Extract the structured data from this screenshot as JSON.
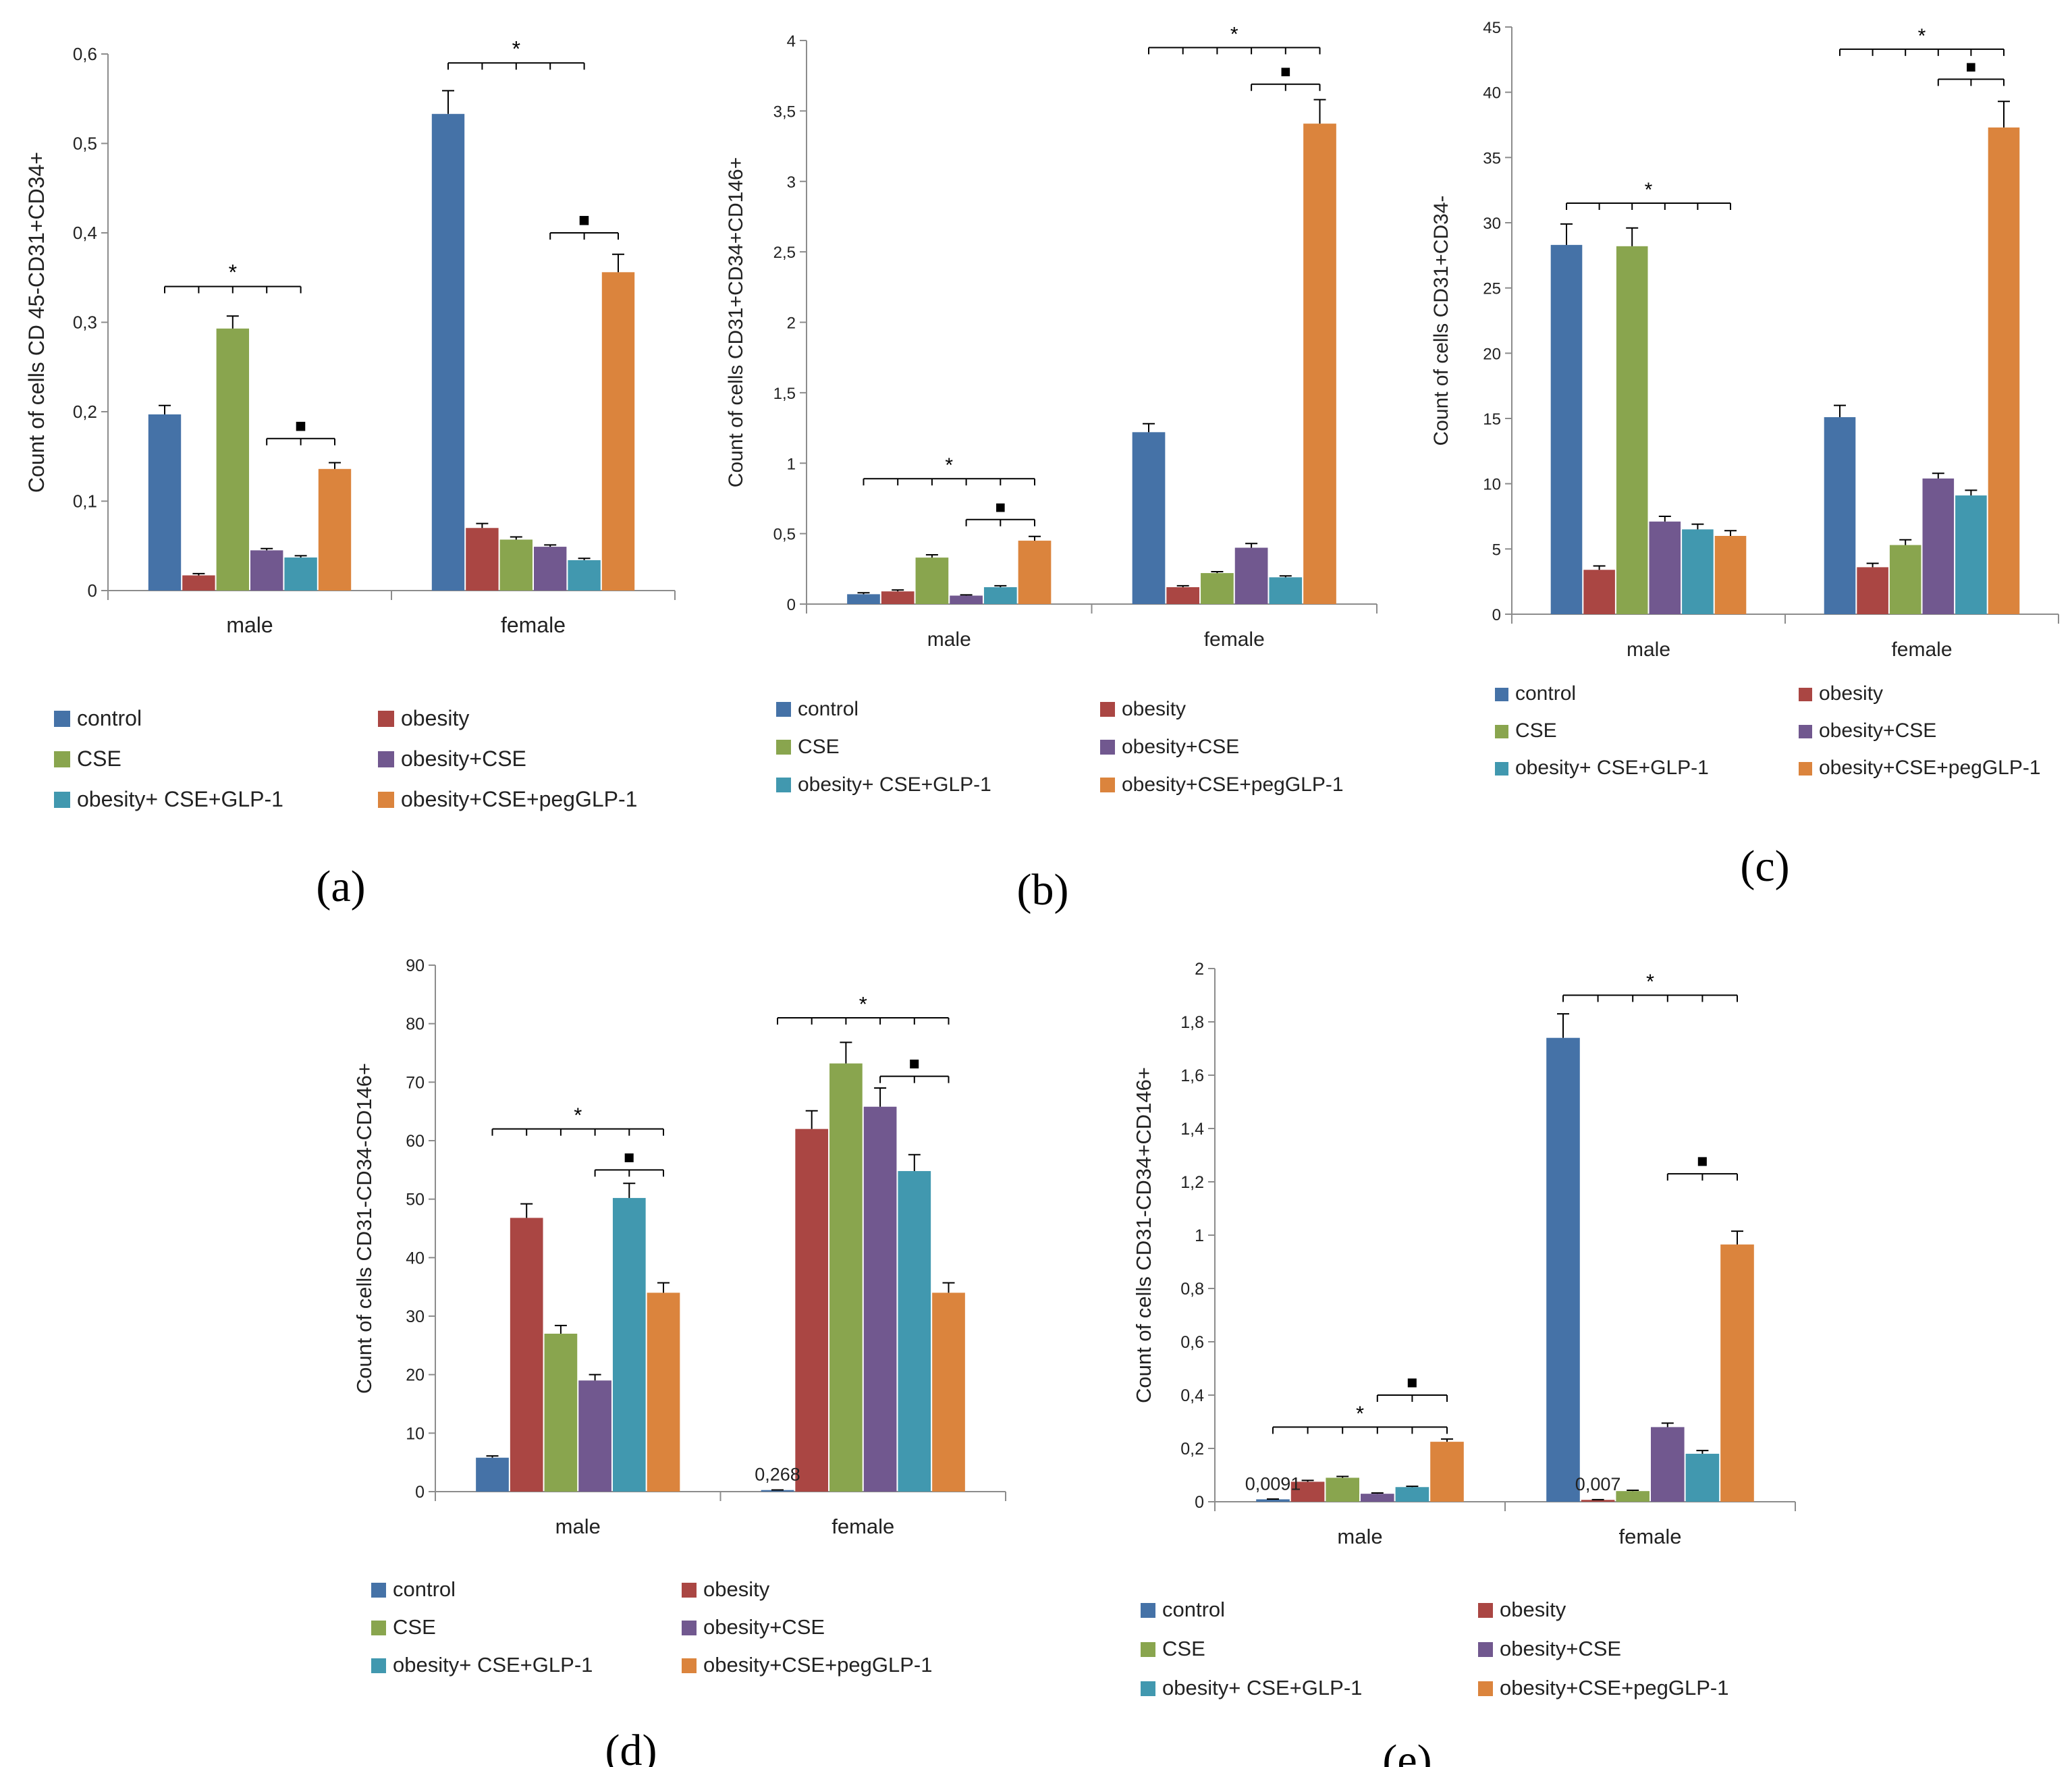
{
  "series_names": [
    "control",
    "obesity",
    "CSE",
    "obesity+CSE",
    "obesity+ CSE+GLP-1",
    "obesity+CSE+pegGLP-1"
  ],
  "series_colors": [
    "#4572A7",
    "#AA4643",
    "#89A54E",
    "#71588F",
    "#4198AF",
    "#DB843D"
  ],
  "categories": [
    "male",
    "female"
  ],
  "significance_marks": {
    "star": "*",
    "square": "■"
  },
  "chart_data": [
    {
      "type": "bar",
      "panel": "(a)",
      "ylabel": "Count of cells CD 45-CD31+CD34+",
      "ylim": [
        0,
        0.6
      ],
      "ticks": [
        "0",
        "0,1",
        "0,2",
        "0,3",
        "0,4",
        "0,5",
        "0,6"
      ],
      "categories": [
        "male",
        "female"
      ],
      "series": [
        {
          "name": "control",
          "values": [
            0.197,
            0.533
          ],
          "errors": [
            0.01,
            0.026
          ]
        },
        {
          "name": "obesity",
          "values": [
            0.017,
            0.07
          ],
          "errors": [
            0.002,
            0.005
          ]
        },
        {
          "name": "CSE",
          "values": [
            0.293,
            0.057
          ],
          "errors": [
            0.014,
            0.003
          ]
        },
        {
          "name": "obesity+CSE",
          "values": [
            0.045,
            0.049
          ],
          "errors": [
            0.002,
            0.002
          ]
        },
        {
          "name": "obesity+ CSE+GLP-1",
          "values": [
            0.037,
            0.034
          ],
          "errors": [
            0.002,
            0.002
          ]
        },
        {
          "name": "obesity+CSE+pegGLP-1",
          "values": [
            0.136,
            0.356
          ],
          "errors": [
            0.007,
            0.02
          ]
        }
      ],
      "annotations": [
        {
          "cat": 0,
          "from": 0,
          "to": 4,
          "level": 0.34,
          "mark": "*"
        },
        {
          "cat": 0,
          "from": 3,
          "to": 5,
          "level": 0.17,
          "mark": "■"
        },
        {
          "cat": 1,
          "from": 0,
          "to": 4,
          "level": 0.59,
          "mark": "*"
        },
        {
          "cat": 1,
          "from": 3,
          "to": 5,
          "level": 0.4,
          "mark": "■"
        }
      ],
      "value_labels": []
    },
    {
      "type": "bar",
      "panel": "(b)",
      "ylabel": "Count of cells CD31+CD34+CD146+",
      "ylim": [
        0,
        4
      ],
      "ticks": [
        "0",
        "0,5",
        "1",
        "1,5",
        "2",
        "2,5",
        "3",
        "3,5",
        "4"
      ],
      "categories": [
        "male",
        "female"
      ],
      "series": [
        {
          "name": "control",
          "values": [
            0.07,
            1.22
          ],
          "errors": [
            0.01,
            0.06
          ]
        },
        {
          "name": "obesity",
          "values": [
            0.09,
            0.12
          ],
          "errors": [
            0.01,
            0.01
          ]
        },
        {
          "name": "CSE",
          "values": [
            0.33,
            0.22
          ],
          "errors": [
            0.02,
            0.01
          ]
        },
        {
          "name": "obesity+CSE",
          "values": [
            0.06,
            0.4
          ],
          "errors": [
            0.005,
            0.03
          ]
        },
        {
          "name": "obesity+ CSE+GLP-1",
          "values": [
            0.12,
            0.19
          ],
          "errors": [
            0.01,
            0.01
          ]
        },
        {
          "name": "obesity+CSE+pegGLP-1",
          "values": [
            0.45,
            3.41
          ],
          "errors": [
            0.03,
            0.17
          ]
        }
      ],
      "annotations": [
        {
          "cat": 0,
          "from": 0,
          "to": 5,
          "level": 0.89,
          "mark": "*"
        },
        {
          "cat": 0,
          "from": 3,
          "to": 5,
          "level": 0.6,
          "mark": "■"
        },
        {
          "cat": 1,
          "from": 0,
          "to": 5,
          "level": 3.95,
          "mark": "*"
        },
        {
          "cat": 1,
          "from": 3,
          "to": 5,
          "level": 3.69,
          "mark": "■"
        }
      ],
      "value_labels": []
    },
    {
      "type": "bar",
      "panel": "(c)",
      "ylabel": "Count of cells CD31+CD34-",
      "ylim": [
        0,
        45
      ],
      "ticks": [
        "0",
        "5",
        "10",
        "15",
        "20",
        "25",
        "30",
        "35",
        "40",
        "45"
      ],
      "categories": [
        "male",
        "female"
      ],
      "series": [
        {
          "name": "control",
          "values": [
            28.3,
            15.1
          ],
          "errors": [
            1.6,
            0.9
          ]
        },
        {
          "name": "obesity",
          "values": [
            3.4,
            3.6
          ],
          "errors": [
            0.3,
            0.3
          ]
        },
        {
          "name": "CSE",
          "values": [
            28.2,
            5.3
          ],
          "errors": [
            1.4,
            0.4
          ]
        },
        {
          "name": "obesity+CSE",
          "values": [
            7.1,
            10.4
          ],
          "errors": [
            0.4,
            0.4
          ]
        },
        {
          "name": "obesity+ CSE+GLP-1",
          "values": [
            6.5,
            9.1
          ],
          "errors": [
            0.4,
            0.4
          ]
        },
        {
          "name": "obesity+CSE+pegGLP-1",
          "values": [
            6.0,
            37.3
          ],
          "errors": [
            0.4,
            2.0
          ]
        }
      ],
      "annotations": [
        {
          "cat": 0,
          "from": 0,
          "to": 5,
          "level": 31.5,
          "mark": "*"
        },
        {
          "cat": 1,
          "from": 0,
          "to": 5,
          "level": 43.3,
          "mark": "*"
        },
        {
          "cat": 1,
          "from": 3,
          "to": 5,
          "level": 41.0,
          "mark": "■"
        }
      ],
      "value_labels": []
    },
    {
      "type": "bar",
      "panel": "(d)",
      "ylabel": "Count of cells CD31-CD34-CD146+",
      "ylim": [
        0,
        90
      ],
      "ticks": [
        "0",
        "10",
        "20",
        "30",
        "40",
        "50",
        "60",
        "70",
        "80",
        "90"
      ],
      "categories": [
        "male",
        "female"
      ],
      "series": [
        {
          "name": "control",
          "values": [
            5.8,
            0.268
          ],
          "errors": [
            0.3,
            0.02
          ]
        },
        {
          "name": "obesity",
          "values": [
            46.8,
            62.0
          ],
          "errors": [
            2.4,
            3.1
          ]
        },
        {
          "name": "CSE",
          "values": [
            27.0,
            73.2
          ],
          "errors": [
            1.4,
            3.6
          ]
        },
        {
          "name": "obesity+CSE",
          "values": [
            19.0,
            65.8
          ],
          "errors": [
            1.0,
            3.2
          ]
        },
        {
          "name": "obesity+ CSE+GLP-1",
          "values": [
            50.2,
            54.8
          ],
          "errors": [
            2.5,
            2.8
          ]
        },
        {
          "name": "obesity+CSE+pegGLP-1",
          "values": [
            34.0,
            34.0
          ],
          "errors": [
            1.7,
            1.7
          ]
        }
      ],
      "annotations": [
        {
          "cat": 0,
          "from": 0,
          "to": 5,
          "level": 62.0,
          "mark": "*"
        },
        {
          "cat": 0,
          "from": 3,
          "to": 5,
          "level": 55.0,
          "mark": "■"
        },
        {
          "cat": 1,
          "from": 0,
          "to": 5,
          "level": 81.0,
          "mark": "*"
        },
        {
          "cat": 1,
          "from": 3,
          "to": 5,
          "level": 71.0,
          "mark": "■"
        }
      ],
      "value_labels": [
        {
          "cat": 1,
          "series": 0,
          "text": "0,268"
        }
      ]
    },
    {
      "type": "bar",
      "panel": "(e)",
      "ylabel": "Count of cells CD31-CD34+CD146+",
      "ylim": [
        0,
        2
      ],
      "ticks": [
        "0",
        "0,2",
        "0,4",
        "0,6",
        "0,8",
        "1",
        "1,2",
        "1,4",
        "1,6",
        "1,8",
        "2"
      ],
      "categories": [
        "male",
        "female"
      ],
      "series": [
        {
          "name": "control",
          "values": [
            0.0091,
            1.74
          ],
          "errors": [
            0.001,
            0.09
          ]
        },
        {
          "name": "obesity",
          "values": [
            0.075,
            0.007
          ],
          "errors": [
            0.005,
            0.001
          ]
        },
        {
          "name": "CSE",
          "values": [
            0.09,
            0.04
          ],
          "errors": [
            0.005,
            0.003
          ]
        },
        {
          "name": "obesity+CSE",
          "values": [
            0.03,
            0.28
          ],
          "errors": [
            0.003,
            0.015
          ]
        },
        {
          "name": "obesity+ CSE+GLP-1",
          "values": [
            0.055,
            0.18
          ],
          "errors": [
            0.003,
            0.012
          ]
        },
        {
          "name": "obesity+CSE+pegGLP-1",
          "values": [
            0.225,
            0.965
          ],
          "errors": [
            0.01,
            0.05
          ]
        }
      ],
      "annotations": [
        {
          "cat": 0,
          "from": 0,
          "to": 5,
          "level": 0.28,
          "mark": "*"
        },
        {
          "cat": 0,
          "from": 3,
          "to": 5,
          "level": 0.4,
          "mark": "■"
        },
        {
          "cat": 1,
          "from": 0,
          "to": 5,
          "level": 1.9,
          "mark": "*"
        },
        {
          "cat": 1,
          "from": 3,
          "to": 5,
          "level": 1.23,
          "mark": "■"
        }
      ],
      "value_labels": [
        {
          "cat": 0,
          "series": 0,
          "text": "0,0091"
        },
        {
          "cat": 1,
          "series": 1,
          "text": "0,007"
        }
      ]
    }
  ]
}
